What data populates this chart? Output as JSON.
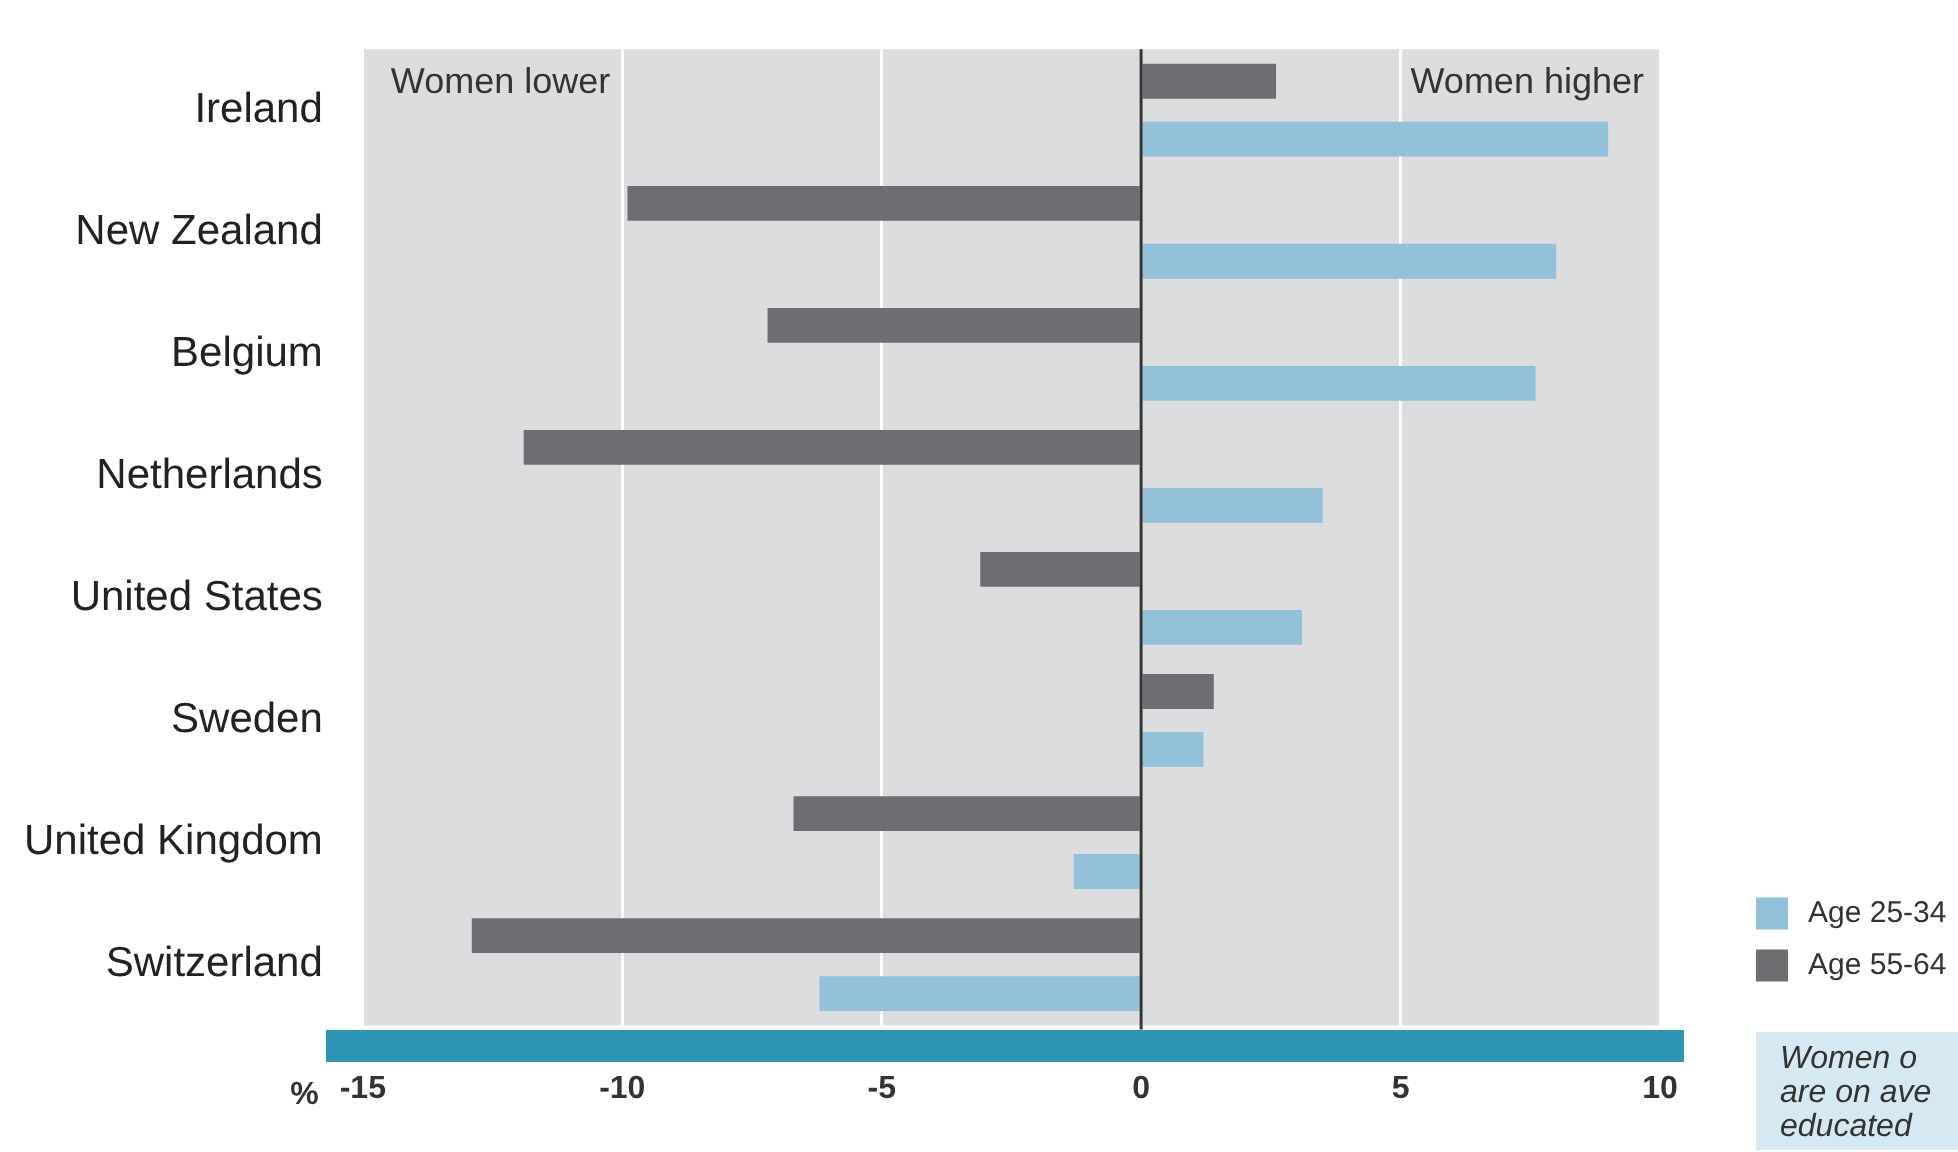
{
  "chart_data": {
    "type": "bar",
    "orientation": "horizontal",
    "categories": [
      "Ireland",
      "New Zealand",
      "Belgium",
      "Netherlands",
      "United States",
      "Sweden",
      "United Kingdom",
      "Switzerland"
    ],
    "series": [
      {
        "name": "Age 25-34",
        "color": "#92c1d9",
        "values": [
          9.0,
          8.0,
          7.6,
          3.5,
          3.1,
          1.2,
          -1.3,
          -6.2
        ]
      },
      {
        "name": "Age 55-64",
        "color": "#6d6e71",
        "values": [
          2.6,
          -9.9,
          -7.2,
          -11.9,
          -3.1,
          1.4,
          -6.7,
          -12.9
        ]
      }
    ],
    "xlim": [
      -15,
      10
    ],
    "xticks": [
      -15,
      -10,
      -5,
      0,
      5,
      10
    ],
    "xlabel": "%",
    "grid": "x",
    "legend": "right",
    "ref_lines": [
      {
        "axis": "x",
        "value": 0,
        "color": "#333333"
      }
    ],
    "annotations": [
      "Women lower",
      "Women higher",
      "Women o\nare on ave\neducated"
    ]
  }
}
